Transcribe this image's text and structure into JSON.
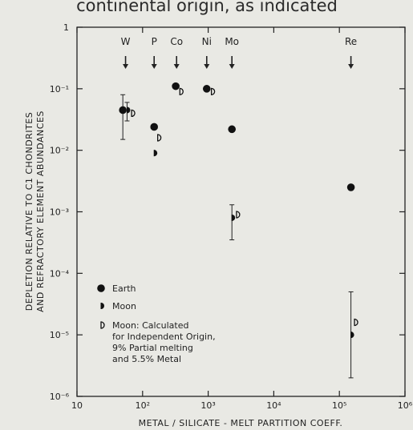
{
  "header_text": "continental origin, as indicated",
  "chart_data": {
    "type": "scatter",
    "x_scale": "log",
    "y_scale": "log",
    "xlim": [
      10,
      1000000
    ],
    "ylim": [
      1e-06,
      1
    ],
    "x_ticks": [
      {
        "v": 10,
        "label": "10"
      },
      {
        "v": 100,
        "label": "10²"
      },
      {
        "v": 1000,
        "label": "10³"
      },
      {
        "v": 10000,
        "label": "10⁴"
      },
      {
        "v": 100000,
        "label": "10⁵"
      },
      {
        "v": 1000000,
        "label": "10⁶"
      }
    ],
    "y_ticks": [
      {
        "v": 1,
        "label": "1"
      },
      {
        "v": 0.1,
        "label": "10⁻¹"
      },
      {
        "v": 0.01,
        "label": "10⁻²"
      },
      {
        "v": 0.001,
        "label": "10⁻³"
      },
      {
        "v": 0.0001,
        "label": "10⁻⁴"
      },
      {
        "v": 1e-05,
        "label": "10⁻⁵"
      },
      {
        "v": 1e-06,
        "label": "10⁻⁶"
      }
    ],
    "xlabel": "METAL / SILICATE - MELT PARTITION COEFF.",
    "ylabel_lines": [
      "DEPLETION RELATIVE TO C1 CHONDRITES",
      "AND REFRACTORY ELEMENT ABUNDANCES"
    ],
    "element_markers": [
      {
        "label": "W",
        "x": 55
      },
      {
        "label": "P",
        "x": 150
      },
      {
        "label": "Co",
        "x": 330
      },
      {
        "label": "Ni",
        "x": 950
      },
      {
        "label": "Mo",
        "x": 2300
      },
      {
        "label": "Re",
        "x": 150000
      }
    ],
    "series": [
      {
        "name": "Earth",
        "marker": "dot",
        "points": [
          {
            "x": 50,
            "y": 0.045,
            "err": [
              0.015,
              0.08
            ]
          },
          {
            "x": 150,
            "y": 0.024
          },
          {
            "x": 320,
            "y": 0.11
          },
          {
            "x": 950,
            "y": 0.1
          },
          {
            "x": 2300,
            "y": 0.022
          },
          {
            "x": 150000,
            "y": 0.0025
          }
        ]
      },
      {
        "name": "Moon",
        "marker": "half",
        "points": [
          {
            "x": 58,
            "y": 0.045,
            "err": [
              0.03,
              0.06
            ]
          },
          {
            "x": 150,
            "y": 0.009
          },
          {
            "x": 2300,
            "y": 0.0008,
            "err": [
              0.00035,
              0.0013
            ]
          },
          {
            "x": 150000,
            "y": 1e-05,
            "err": [
              2e-06,
              5e-05
            ]
          }
        ]
      },
      {
        "name": "Moon: Calculated for Independent Origin, 9% Partial melting and 5.5% Metal",
        "marker": "open-half",
        "points": [
          {
            "x": 68,
            "y": 0.04
          },
          {
            "x": 170,
            "y": 0.016
          },
          {
            "x": 370,
            "y": 0.09
          },
          {
            "x": 1120,
            "y": 0.09
          },
          {
            "x": 2700,
            "y": 0.0009
          },
          {
            "x": 170000,
            "y": 1.6e-05
          }
        ]
      }
    ],
    "legend": {
      "placement": "bottom-left",
      "lines": [
        "Earth",
        "Moon",
        "Moon: Calculated",
        "for Independent Origin,",
        "9% Partial melting",
        "and 5.5% Metal"
      ]
    }
  }
}
